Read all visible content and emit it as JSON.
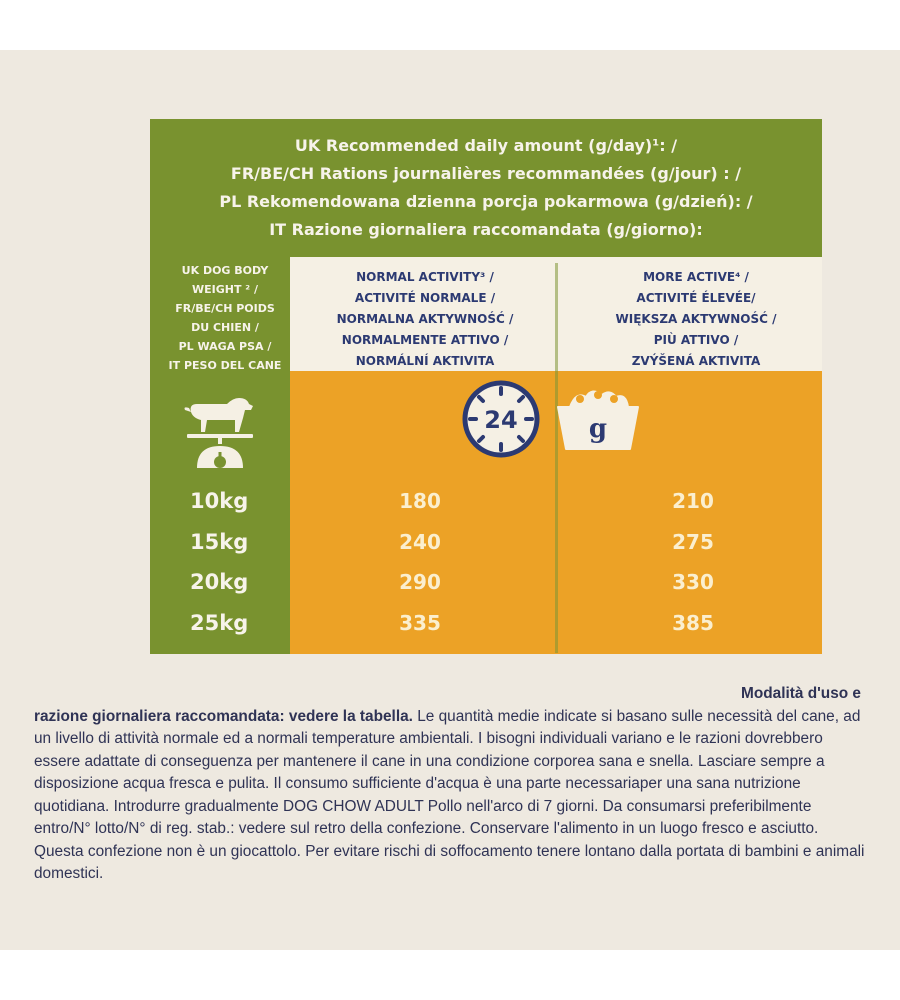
{
  "header": {
    "lines": [
      "UK Recommended daily amount (g/day)¹: /",
      "FR/BE/CH Rations journalières recommandées (g/jour) : /",
      "PL Rekomendowana dzienna porcja pokarmowa (g/dzień): /",
      "IT Razione giornaliera raccomandata (g/giorno):"
    ]
  },
  "weight_label": {
    "lines": [
      "UK DOG BODY",
      "WEIGHT ² /",
      "FR/BE/CH POIDS",
      "DU CHIEN /",
      "PL WAGA PSA /",
      "IT PESO DEL CANE"
    ]
  },
  "columns": [
    {
      "lines": [
        "NORMAL ACTIVITY³ /",
        "ACTIVITÉ NORMALE /",
        "NORMALNA AKTYWNOŚĆ /",
        "NORMALMENTE ATTIVO /",
        "NORMÁLNÍ AKTIVITA"
      ]
    },
    {
      "lines": [
        "MORE ACTIVE⁴ /",
        "ACTIVITÉ ÉLEVÉE/",
        "WIĘKSZA AKTYWNOŚĆ /",
        "PIÙ ATTIVO /",
        "ZVÝŠENÁ AKTIVITA"
      ]
    }
  ],
  "icons": {
    "clock": {
      "name": "clock-24-icon",
      "text": "24"
    },
    "bowl": {
      "name": "food-bowl-icon",
      "text": "g"
    },
    "dog": {
      "name": "dog-on-scale-icon"
    }
  },
  "rows": [
    {
      "weight": "10kg",
      "normal": "180",
      "active": "210"
    },
    {
      "weight": "15kg",
      "normal": "240",
      "active": "275"
    },
    {
      "weight": "20kg",
      "normal": "290",
      "active": "330"
    },
    {
      "weight": "25kg",
      "normal": "335",
      "active": "385"
    }
  ],
  "usage": {
    "title": "Modalità d'uso e",
    "lead": "razione giornaliera raccomandata: vedere la tabella.",
    "body": " Le quantità medie indicate si basano sulle necessità del cane, ad un livello di attività normale ed a normali temperature ambientali. I bisogni individuali variano e le razioni dovrebbero essere adattate di conseguenza per mantenere il cane in una condizione corporea sana e snella. Lasciare sempre a disposizione acqua fresca e pulita. Il consumo sufficiente d'acqua è una parte necessariaper una sana nutrizione quotidiana. Introdurre gradualmente DOG CHOW ADULT Pollo nell'arco di 7 giorni. Da consumarsi preferibilmente entro/N° lotto/N° di reg. stab.: vedere sul retro della confezione. Conservare l'alimento in un luogo fresco e asciutto. Questa confezione non è un giocattolo. Per evitare rischi di soffocamento tenere lontano dalla portata di bambini e animali domestici."
  },
  "colors": {
    "panel_green": "#79922f",
    "cream": "#f5f0e4",
    "orange": "#eca226",
    "navy": "#2c3a72",
    "background": "#eee9e0"
  }
}
